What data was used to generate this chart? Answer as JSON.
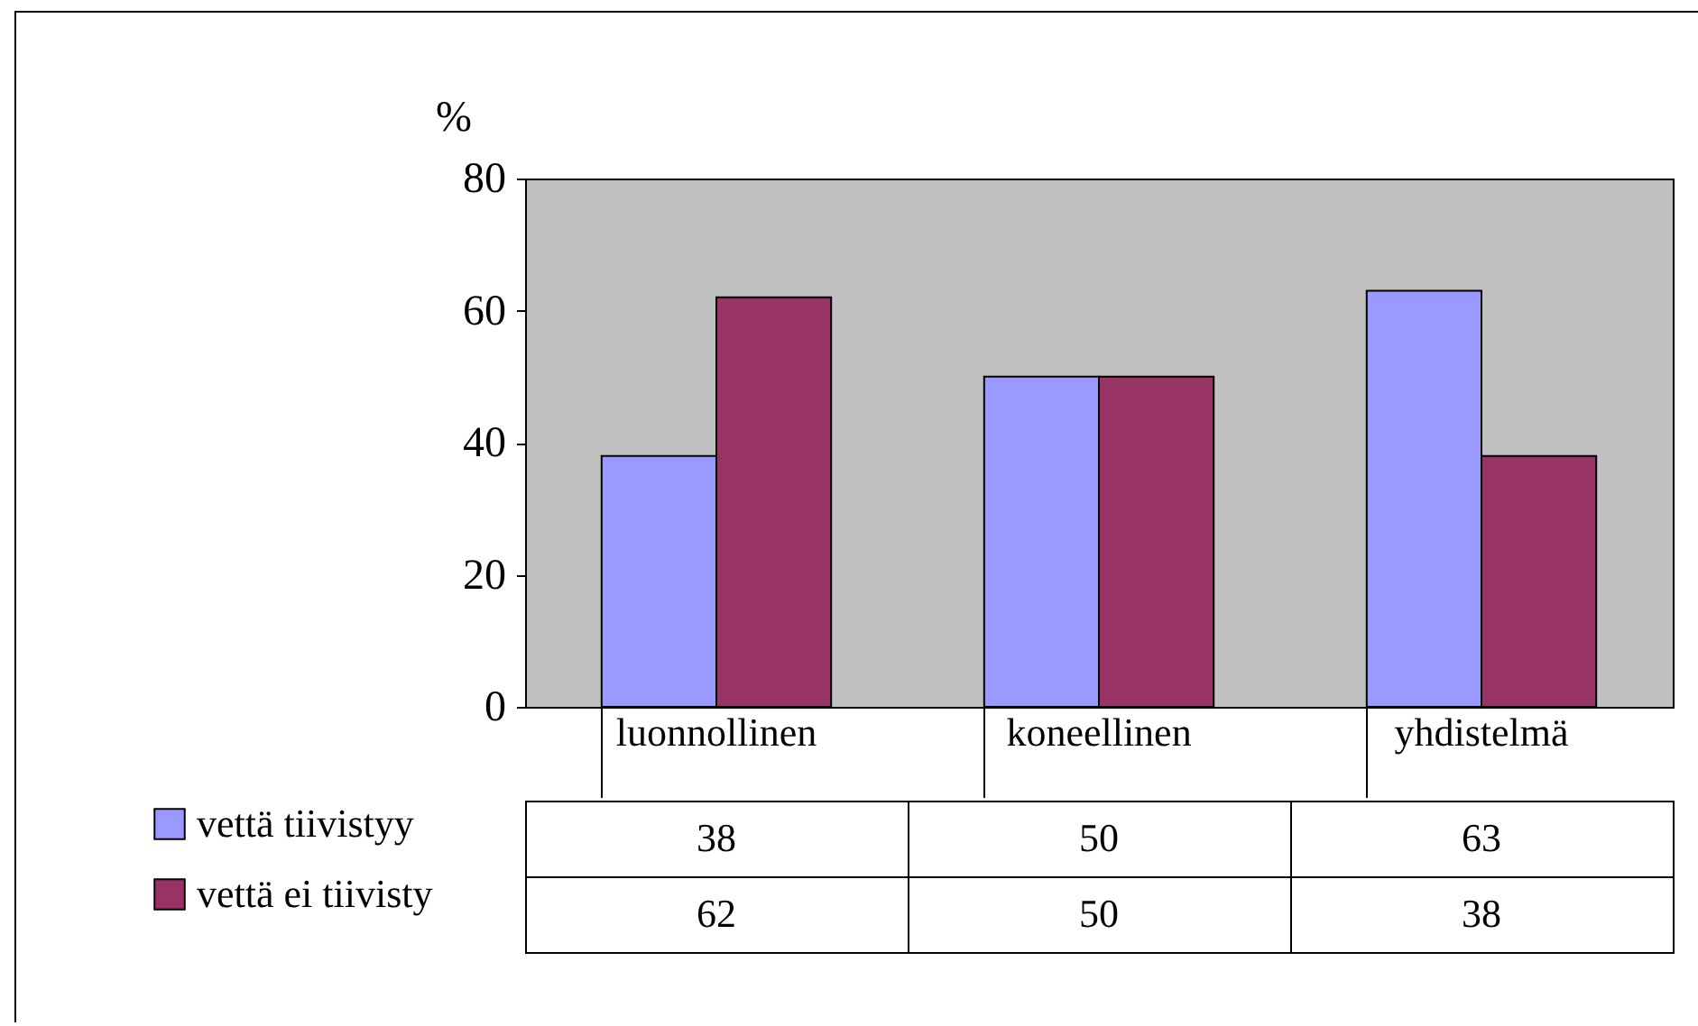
{
  "chart_data": {
    "type": "bar",
    "ylabel": "%",
    "categories": [
      "luonnollinen",
      "koneellinen",
      "yhdistelmä"
    ],
    "series": [
      {
        "name": "vettä tiivistyy",
        "color": "#9999ff",
        "values": [
          38,
          50,
          63
        ]
      },
      {
        "name": "vettä ei tiivisty",
        "color": "#993366",
        "values": [
          62,
          50,
          38
        ]
      }
    ],
    "ylim": [
      0,
      80
    ],
    "yticks": [
      0,
      20,
      40,
      60,
      80
    ],
    "data_labels": true,
    "legend": "bottom"
  }
}
